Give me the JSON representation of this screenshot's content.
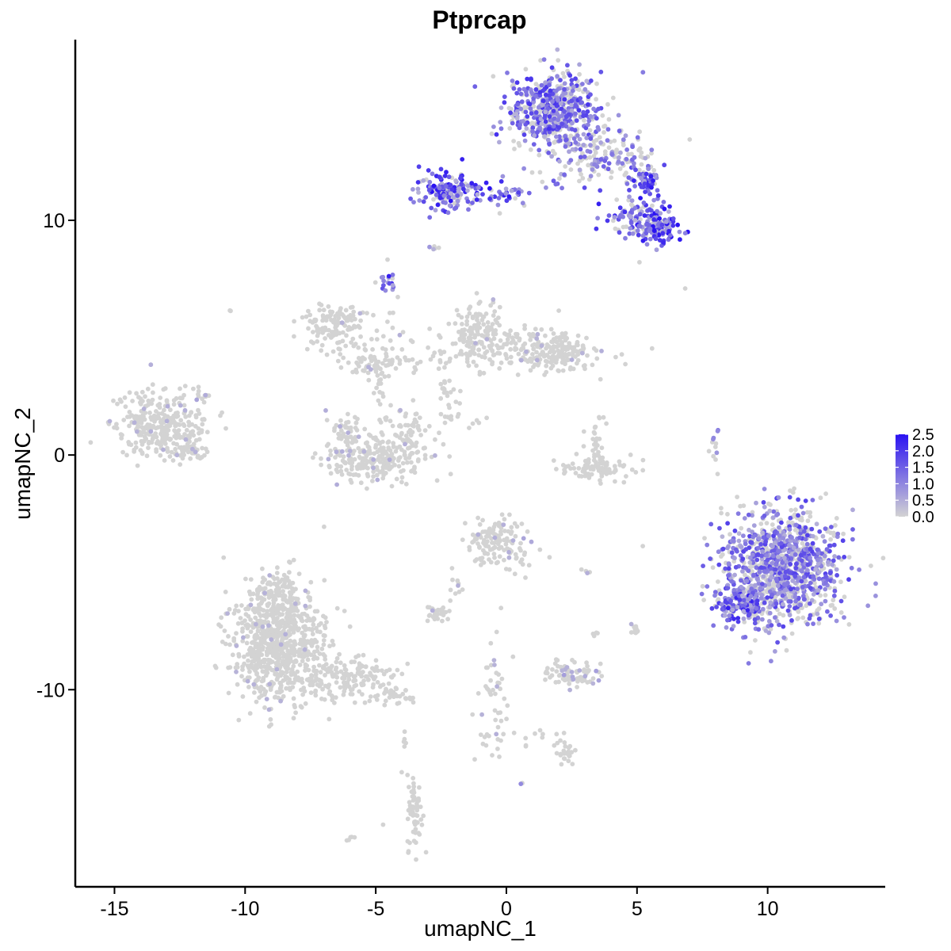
{
  "chart_data": {
    "type": "scatter",
    "title": "Ptprcap",
    "xlabel": "umapNC_1",
    "ylabel": "umapNC_2",
    "xlim": [
      -16.5,
      14.5
    ],
    "ylim": [
      -18.4,
      17.7
    ],
    "x_ticks": [
      -15,
      -10,
      -5,
      0,
      5,
      10
    ],
    "x_tick_labels": [
      "-15",
      "-10",
      "-5",
      "0",
      "5",
      "10"
    ],
    "y_ticks": [
      -10,
      0,
      10
    ],
    "y_tick_labels": [
      "-10",
      "0",
      "10"
    ],
    "grid": false,
    "legend_position": "right",
    "color_scale": {
      "low_color": "#d3d3d3",
      "high_color": "#2a12f2",
      "range": [
        0.0,
        2.5
      ],
      "breaks": [
        0.0,
        0.5,
        1.0,
        1.5,
        2.0,
        2.5
      ],
      "break_labels": [
        "0.0",
        "0.5",
        "1.0",
        "1.5",
        "2.0",
        "2.5"
      ]
    },
    "clusters": [
      {
        "cx": 1.8,
        "cy": 14.7,
        "sx": 0.9,
        "sy": 0.8,
        "n": 520,
        "expr": 0.65
      },
      {
        "cx": 3.5,
        "cy": 12.7,
        "sx": 1.0,
        "sy": 0.6,
        "n": 170,
        "expr": 0.45
      },
      {
        "cx": 5.3,
        "cy": 11.6,
        "sx": 0.3,
        "sy": 0.4,
        "n": 60,
        "expr": 0.8
      },
      {
        "cx": -2.3,
        "cy": 11.3,
        "sx": 0.5,
        "sy": 0.4,
        "n": 150,
        "expr": 0.85
      },
      {
        "cx": -0.5,
        "cy": 11.1,
        "sx": 1.2,
        "sy": 0.3,
        "n": 60,
        "expr": 0.8
      },
      {
        "cx": 4.9,
        "cy": 10.1,
        "sx": 0.6,
        "sy": 0.5,
        "n": 100,
        "expr": 0.75
      },
      {
        "cx": 5.8,
        "cy": 9.6,
        "sx": 0.4,
        "sy": 0.35,
        "n": 90,
        "expr": 0.9
      },
      {
        "cx": -4.5,
        "cy": 7.3,
        "sx": 0.15,
        "sy": 0.2,
        "n": 15,
        "expr": 0.75
      },
      {
        "cx": -2.7,
        "cy": 8.8,
        "sx": 0.1,
        "sy": 0.08,
        "n": 5,
        "expr": 0.4
      },
      {
        "cx": 6.8,
        "cy": 7.1,
        "sx": 0.03,
        "sy": 0.03,
        "n": 1,
        "expr": 0.7
      },
      {
        "cx": -6.6,
        "cy": 5.6,
        "sx": 0.6,
        "sy": 0.5,
        "n": 130,
        "expr": 0.02
      },
      {
        "cx": -4.9,
        "cy": 4.0,
        "sx": 0.9,
        "sy": 0.35,
        "n": 80,
        "expr": 0.02
      },
      {
        "cx": -4.5,
        "cy": 5.8,
        "sx": 0.3,
        "sy": 1.2,
        "n": 15,
        "expr": 0.05
      },
      {
        "cx": -10.6,
        "cy": 6.1,
        "sx": 0.04,
        "sy": 0.05,
        "n": 2,
        "expr": 0.0
      },
      {
        "cx": -1.1,
        "cy": 5.4,
        "sx": 0.45,
        "sy": 0.6,
        "n": 110,
        "expr": 0.02
      },
      {
        "cx": 0.2,
        "cy": 4.5,
        "sx": 1.5,
        "sy": 0.5,
        "n": 170,
        "expr": 0.03
      },
      {
        "cx": 2.2,
        "cy": 4.4,
        "sx": 0.6,
        "sy": 0.4,
        "n": 110,
        "expr": 0.03
      },
      {
        "cx": -2.2,
        "cy": 2.7,
        "sx": 0.25,
        "sy": 0.9,
        "n": 30,
        "expr": 0.0
      },
      {
        "cx": -13.1,
        "cy": 1.2,
        "sx": 0.9,
        "sy": 0.7,
        "n": 300,
        "expr": 0.03
      },
      {
        "cx": -12.2,
        "cy": 0.1,
        "sx": 0.4,
        "sy": 0.25,
        "n": 40,
        "expr": 0.02
      },
      {
        "cx": -11.7,
        "cy": 2.6,
        "sx": 0.2,
        "sy": 0.15,
        "n": 10,
        "expr": 0.15
      },
      {
        "cx": -5.0,
        "cy": -0.2,
        "sx": 1.0,
        "sy": 0.45,
        "n": 230,
        "expr": 0.04
      },
      {
        "cx": -6.1,
        "cy": 0.9,
        "sx": 0.3,
        "sy": 0.4,
        "n": 50,
        "expr": 0.04
      },
      {
        "cx": -3.7,
        "cy": 1.0,
        "sx": 0.3,
        "sy": 0.6,
        "n": 50,
        "expr": 0.04
      },
      {
        "cx": -4.8,
        "cy": 2.3,
        "sx": 0.15,
        "sy": 1.0,
        "n": 25,
        "expr": 0.0
      },
      {
        "cx": -1.8,
        "cy": 1.4,
        "sx": 0.6,
        "sy": 0.3,
        "n": 10,
        "expr": 0.1
      },
      {
        "cx": 3.4,
        "cy": -0.6,
        "sx": 0.7,
        "sy": 0.25,
        "n": 90,
        "expr": 0.02
      },
      {
        "cx": 3.4,
        "cy": 0.7,
        "sx": 0.25,
        "sy": 0.5,
        "n": 25,
        "expr": 0.05
      },
      {
        "cx": 8.0,
        "cy": 0.4,
        "sx": 0.15,
        "sy": 0.5,
        "n": 12,
        "expr": 0.3
      },
      {
        "cx": 10.5,
        "cy": -4.8,
        "sx": 1.1,
        "sy": 1.2,
        "n": 1100,
        "expr": 0.58
      },
      {
        "cx": 9.0,
        "cy": -6.4,
        "sx": 0.5,
        "sy": 0.4,
        "n": 150,
        "expr": 0.75
      },
      {
        "cx": -0.5,
        "cy": -3.7,
        "sx": 0.5,
        "sy": 0.5,
        "n": 110,
        "expr": 0.04
      },
      {
        "cx": 0.6,
        "cy": -4.3,
        "sx": 0.4,
        "sy": 0.6,
        "n": 30,
        "expr": 0.08
      },
      {
        "cx": -2.6,
        "cy": -6.8,
        "sx": 0.3,
        "sy": 0.2,
        "n": 30,
        "expr": 0.04
      },
      {
        "cx": -2.0,
        "cy": -5.6,
        "sx": 0.2,
        "sy": 0.3,
        "n": 10,
        "expr": 0.02
      },
      {
        "cx": 3.0,
        "cy": -5.0,
        "sx": 0.1,
        "sy": 0.06,
        "n": 4,
        "expr": 0.3
      },
      {
        "cx": 5.0,
        "cy": -7.4,
        "sx": 0.15,
        "sy": 0.2,
        "n": 10,
        "expr": 0.05
      },
      {
        "cx": 3.4,
        "cy": -7.7,
        "sx": 0.1,
        "sy": 0.1,
        "n": 4,
        "expr": 0.0
      },
      {
        "cx": -8.7,
        "cy": -8.2,
        "sx": 0.9,
        "sy": 1.2,
        "n": 720,
        "expr": 0.02
      },
      {
        "cx": -8.7,
        "cy": -6.0,
        "sx": 0.5,
        "sy": 0.6,
        "n": 120,
        "expr": 0.02
      },
      {
        "cx": -6.2,
        "cy": -9.5,
        "sx": 1.0,
        "sy": 0.45,
        "n": 160,
        "expr": 0.0
      },
      {
        "cx": -4.3,
        "cy": -10.3,
        "sx": 0.35,
        "sy": 0.2,
        "n": 30,
        "expr": 0.0
      },
      {
        "cx": 2.5,
        "cy": -9.4,
        "sx": 0.55,
        "sy": 0.25,
        "n": 70,
        "expr": 0.12
      },
      {
        "cx": 2.2,
        "cy": -9.0,
        "sx": 0.2,
        "sy": 0.15,
        "n": 15,
        "expr": 0.05
      },
      {
        "cx": -0.5,
        "cy": -10.5,
        "sx": 0.3,
        "sy": 1.4,
        "n": 50,
        "expr": 0.03
      },
      {
        "cx": 2.3,
        "cy": -12.6,
        "sx": 0.2,
        "sy": 0.3,
        "n": 25,
        "expr": 0.02
      },
      {
        "cx": 1.3,
        "cy": -12.0,
        "sx": 0.5,
        "sy": 0.3,
        "n": 10,
        "expr": 0.0
      },
      {
        "cx": -3.5,
        "cy": -15.2,
        "sx": 0.15,
        "sy": 0.8,
        "n": 60,
        "expr": 0.0
      },
      {
        "cx": -3.9,
        "cy": -12.3,
        "sx": 0.05,
        "sy": 0.3,
        "n": 5,
        "expr": 0.0
      },
      {
        "cx": -5.9,
        "cy": -16.3,
        "sx": 0.12,
        "sy": 0.08,
        "n": 5,
        "expr": 0.0
      },
      {
        "cx": -4.7,
        "cy": -15.8,
        "sx": 0.03,
        "sy": 0.03,
        "n": 1,
        "expr": 0.0
      },
      {
        "cx": 0.6,
        "cy": -14.0,
        "sx": 0.05,
        "sy": 0.04,
        "n": 2,
        "expr": 0.5
      },
      {
        "cx": 5.1,
        "cy": 8.2,
        "sx": 0.03,
        "sy": 0.03,
        "n": 1,
        "expr": 0.0
      }
    ]
  }
}
